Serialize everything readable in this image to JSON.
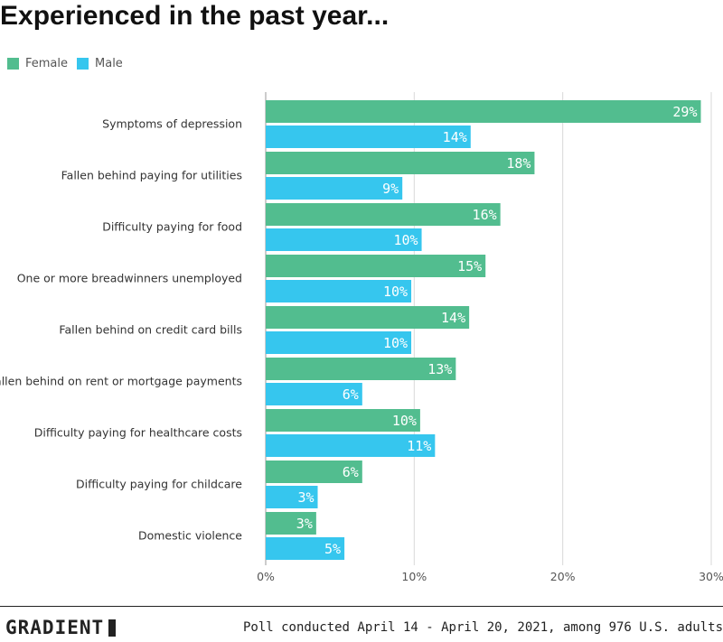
{
  "title": "Experienced in the past year...",
  "legend": [
    {
      "name": "Female",
      "color": "#52bd8f"
    },
    {
      "name": "Male",
      "color": "#36c6ee"
    }
  ],
  "chart_data": {
    "type": "bar",
    "orientation": "horizontal",
    "categories": [
      "Symptoms of depression",
      "Fallen behind paying for utilities",
      "Difficulty paying for food",
      "One or more breadwinners unemployed",
      "Fallen behind on credit card bills",
      "Fallen behind on rent or mortgage payments",
      "Difficulty paying for healthcare costs",
      "Difficulty paying for childcare",
      "Domestic violence"
    ],
    "series": [
      {
        "name": "Female",
        "color": "#52bd8f",
        "values": [
          29.3,
          18.1,
          15.8,
          14.8,
          13.7,
          12.8,
          10.4,
          6.5,
          3.4
        ],
        "labels": [
          "29%",
          "18%",
          "16%",
          "15%",
          "14%",
          "13%",
          "10%",
          "6%",
          "3%"
        ]
      },
      {
        "name": "Male",
        "color": "#36c6ee",
        "values": [
          13.8,
          9.2,
          10.5,
          9.8,
          9.8,
          6.5,
          11.4,
          3.5,
          5.3
        ],
        "labels": [
          "14%",
          "9%",
          "10%",
          "10%",
          "10%",
          "6%",
          "11%",
          "3%",
          "5%"
        ]
      }
    ],
    "xlim": [
      0,
      30
    ],
    "xticks": [
      0,
      10,
      20,
      30
    ],
    "xtick_labels": [
      "0%",
      "10%",
      "20%",
      "30%"
    ],
    "grid": true,
    "legend_position": "top-left"
  },
  "footer": {
    "brand": "GRADIENT",
    "source": "Poll conducted April 14 - April 20, 2021, among 976 U.S. adults"
  }
}
